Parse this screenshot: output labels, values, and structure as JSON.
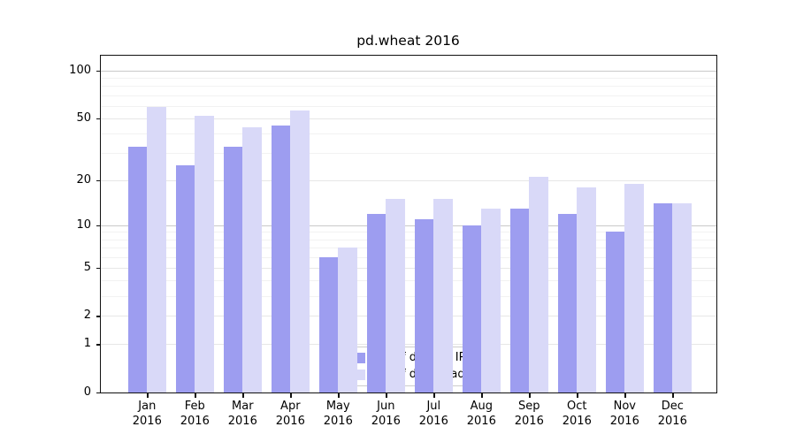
{
  "title": "pd.wheat 2016",
  "colors": {
    "ips_bar": "#9d9df0",
    "downloads_bar": "#d9d9f8",
    "axis": "#111111",
    "grid_decade": "#c9c9c9",
    "grid_mid": "#e7e7e7",
    "grid_minor": "#f2f2f2"
  },
  "legend": {
    "items": [
      {
        "label": "Nb of distinct IPs",
        "color_key": "ips_bar"
      },
      {
        "label": "Nb of downloads",
        "color_key": "downloads_bar"
      }
    ]
  },
  "y_axis": {
    "tick_labels": [
      "0",
      "1",
      "2",
      "5",
      "10",
      "20",
      "50",
      "100"
    ],
    "tick_values": [
      0,
      1,
      2,
      5,
      10,
      20,
      50,
      100
    ],
    "decade_gridlines": [
      10,
      100
    ],
    "mid_gridlines": [
      1,
      2,
      5,
      20,
      50
    ],
    "minor_gridlines": [
      3,
      4,
      6,
      7,
      8,
      9,
      30,
      40,
      60,
      70,
      80,
      90
    ]
  },
  "x_axis": {
    "months": [
      "Jan",
      "Feb",
      "Mar",
      "Apr",
      "May",
      "Jun",
      "Jul",
      "Aug",
      "Sep",
      "Oct",
      "Nov",
      "Dec"
    ],
    "year": "2016"
  },
  "chart_data": {
    "type": "bar",
    "title": "pd.wheat 2016",
    "categories": [
      "Jan 2016",
      "Feb 2016",
      "Mar 2016",
      "Apr 2016",
      "May 2016",
      "Jun 2016",
      "Jul 2016",
      "Aug 2016",
      "Sep 2016",
      "Oct 2016",
      "Nov 2016",
      "Dec 2016"
    ],
    "series": [
      {
        "name": "Nb of distinct IPs",
        "values": [
          33,
          25,
          33,
          45,
          6,
          12,
          11,
          10,
          13,
          12,
          9,
          14
        ]
      },
      {
        "name": "Nb of downloads",
        "values": [
          59,
          52,
          44,
          56,
          7,
          15,
          15,
          13,
          21,
          18,
          19,
          14
        ]
      }
    ],
    "xlabel": "",
    "ylabel": "",
    "yscale": "log10(1+y)",
    "yticks": [
      0,
      1,
      2,
      5,
      10,
      20,
      50,
      100
    ],
    "ylim": [
      0,
      130
    ],
    "grid": true,
    "legend_position": "lower center"
  }
}
